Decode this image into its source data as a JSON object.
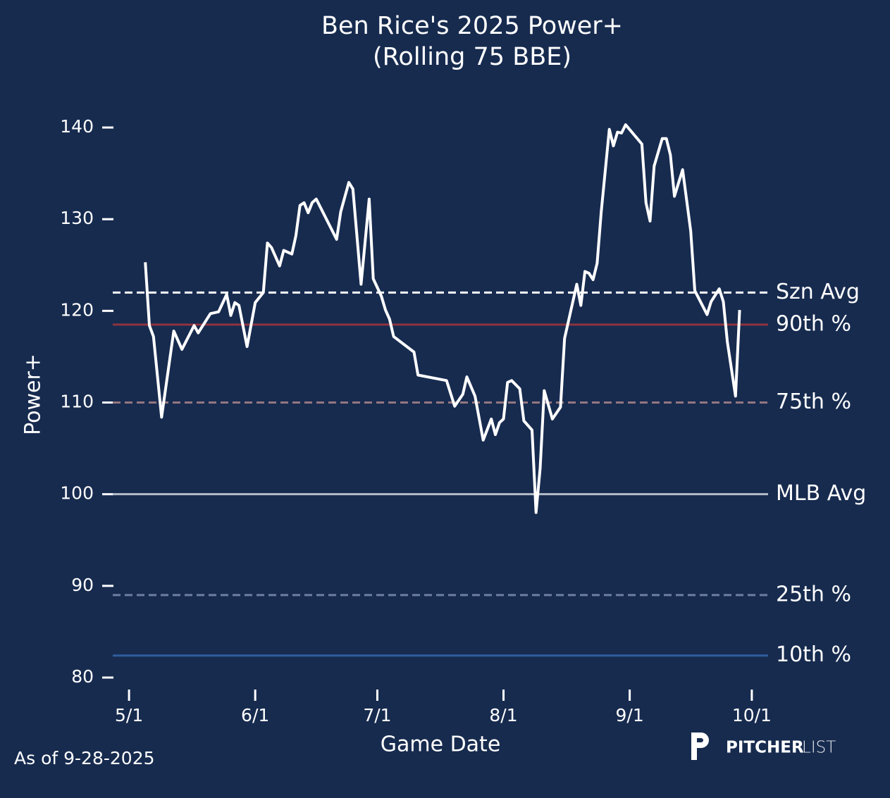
{
  "chart_data": {
    "type": "line",
    "title": "Ben Rice's 2025 Power+",
    "subtitle": "(Rolling 75 BBE)",
    "xlabel": "Game Date",
    "ylabel": "Power+",
    "note": "As of 9-28-2025",
    "logo": [
      "PITCHER",
      "LIST"
    ],
    "xlim": [
      "4/27",
      "10/5"
    ],
    "xticks": [
      "5/1",
      "6/1",
      "7/1",
      "8/1",
      "9/1",
      "10/1"
    ],
    "ylim": [
      79,
      143
    ],
    "yticks": [
      80,
      90,
      100,
      110,
      120,
      130,
      140
    ],
    "reference_lines": [
      {
        "label": "Szn Avg",
        "value": 122,
        "color": "#ffffff",
        "label_color": "#ffffff",
        "dashed": true
      },
      {
        "label": "90th %",
        "value": 118.5,
        "color": "#8e3440",
        "label_color": "#b9414b",
        "dashed": false
      },
      {
        "label": "75th %",
        "value": 110,
        "color": "#94767f",
        "label_color": "#d4a1a6",
        "dashed": true
      },
      {
        "label": "MLB Avg",
        "value": 100,
        "color": "#b5bcc9",
        "label_color": "#c6ccd8",
        "dashed": false
      },
      {
        "label": "25th %",
        "value": 89,
        "color": "#6d7f9f",
        "label_color": "#a7b4ca",
        "dashed": true
      },
      {
        "label": "10th %",
        "value": 82.4,
        "color": "#2f5d9d",
        "label_color": "#5f88c6",
        "dashed": false
      }
    ],
    "series": [
      {
        "name": "Power+",
        "color": "#ffffff",
        "x": [
          "5/5",
          "5/6",
          "5/7",
          "5/9",
          "5/12",
          "5/14",
          "5/17",
          "5/18",
          "5/21",
          "5/23",
          "5/25",
          "5/26",
          "5/27",
          "5/28",
          "5/30",
          "6/1",
          "6/3",
          "6/4",
          "6/5",
          "6/7",
          "6/8",
          "6/10",
          "6/11",
          "6/12",
          "6/13",
          "6/14",
          "6/15",
          "6/16",
          "6/21",
          "6/22",
          "6/24",
          "6/25",
          "6/27",
          "6/29",
          "6/30",
          "7/2",
          "7/3",
          "7/4",
          "7/5",
          "7/10",
          "7/11",
          "7/18",
          "7/20",
          "7/22",
          "7/23",
          "7/25",
          "7/27",
          "7/29",
          "7/30",
          "7/31",
          "8/1",
          "8/2",
          "8/3",
          "8/5",
          "8/6",
          "8/8",
          "8/9",
          "8/10",
          "8/11",
          "8/13",
          "8/15",
          "8/16",
          "8/19",
          "8/20",
          "8/21",
          "8/22",
          "8/23",
          "8/24",
          "8/25",
          "8/27",
          "8/28",
          "8/29",
          "8/30",
          "8/31",
          "9/4",
          "9/5",
          "9/6",
          "9/7",
          "9/9",
          "9/10",
          "9/11",
          "9/12",
          "9/14",
          "9/16",
          "9/17",
          "9/20",
          "9/21",
          "9/23",
          "9/24",
          "9/25",
          "9/27",
          "9/28"
        ],
        "values": [
          125.3,
          118.4,
          117.2,
          108.4,
          117.8,
          115.8,
          118.4,
          117.6,
          119.7,
          119.9,
          121.8,
          119.5,
          120.9,
          120.6,
          116.1,
          120.9,
          122.0,
          127.4,
          126.9,
          124.9,
          126.6,
          126.2,
          128.2,
          131.5,
          131.8,
          130.7,
          131.8,
          132.2,
          127.8,
          130.8,
          134.0,
          133.3,
          122.9,
          132.2,
          123.5,
          121.6,
          120.1,
          119.1,
          117.2,
          115.5,
          113.0,
          112.4,
          109.6,
          110.9,
          112.8,
          110.7,
          105.9,
          108.2,
          106.5,
          107.8,
          108.2,
          112.2,
          112.4,
          111.5,
          108.0,
          107.0,
          98.0,
          102.8,
          111.3,
          108.2,
          109.5,
          117.0,
          122.9,
          120.6,
          124.3,
          124.1,
          123.4,
          125.2,
          130.8,
          139.8,
          138.0,
          139.5,
          139.4,
          140.3,
          138.2,
          131.8,
          129.8,
          135.8,
          138.8,
          138.8,
          137.0,
          132.5,
          135.4,
          128.7,
          122.2,
          119.6,
          121.0,
          122.4,
          121.0,
          116.6,
          110.7,
          120.1
        ]
      }
    ]
  }
}
